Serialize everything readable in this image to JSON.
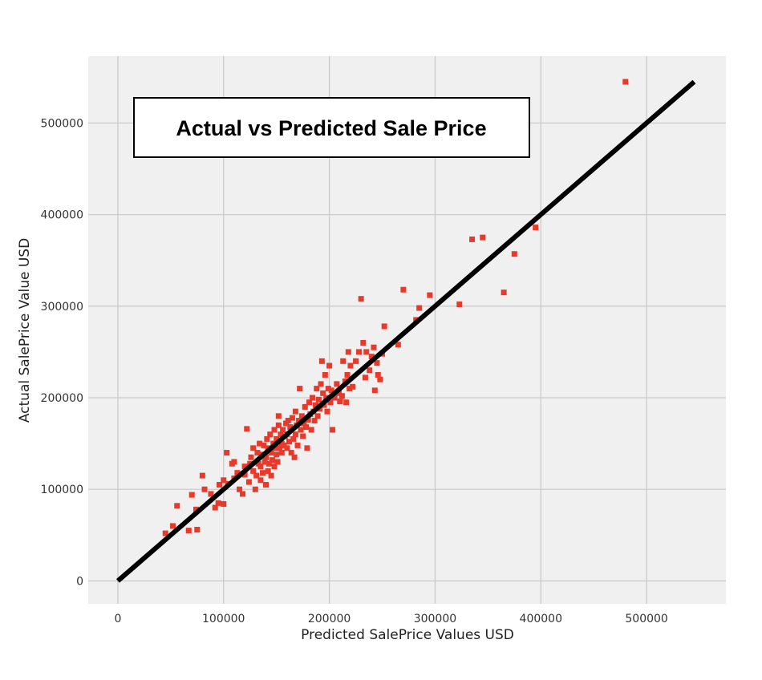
{
  "chart_data": {
    "type": "scatter",
    "title": "Actual vs Predicted Sale Price",
    "xlabel": "Predicted SalePrice Values USD",
    "ylabel": "Actual SalePrice Value USD",
    "xlim": [
      -28000,
      575000
    ],
    "ylim": [
      -25000,
      573000
    ],
    "xticks": [
      0,
      100000,
      200000,
      300000,
      400000,
      500000
    ],
    "yticks": [
      0,
      100000,
      200000,
      300000,
      400000,
      500000
    ],
    "grid": true,
    "reference_line": {
      "x": [
        0,
        545000
      ],
      "y": [
        0,
        545000
      ],
      "color": "#000000"
    },
    "point_color": "#e8392a",
    "background_color": "#f0f0f0",
    "points": [
      [
        45000,
        52000
      ],
      [
        52000,
        60000
      ],
      [
        56000,
        82000
      ],
      [
        67000,
        55000
      ],
      [
        70000,
        94000
      ],
      [
        75000,
        56000
      ],
      [
        74000,
        78000
      ],
      [
        80000,
        115000
      ],
      [
        82000,
        100000
      ],
      [
        88000,
        95000
      ],
      [
        92000,
        80000
      ],
      [
        95000,
        85000
      ],
      [
        96000,
        105000
      ],
      [
        100000,
        84000
      ],
      [
        100000,
        110000
      ],
      [
        103000,
        140000
      ],
      [
        104000,
        106000
      ],
      [
        108000,
        128000
      ],
      [
        110000,
        112000
      ],
      [
        110000,
        130000
      ],
      [
        113000,
        118000
      ],
      [
        115000,
        100000
      ],
      [
        118000,
        95000
      ],
      [
        120000,
        116000
      ],
      [
        120000,
        125000
      ],
      [
        122000,
        166000
      ],
      [
        124000,
        108000
      ],
      [
        125000,
        128000
      ],
      [
        126000,
        135000
      ],
      [
        128000,
        120000
      ],
      [
        128000,
        145000
      ],
      [
        130000,
        100000
      ],
      [
        131000,
        115000
      ],
      [
        132000,
        140000
      ],
      [
        133000,
        128000
      ],
      [
        134000,
        150000
      ],
      [
        135000,
        110000
      ],
      [
        135000,
        125000
      ],
      [
        136000,
        138000
      ],
      [
        137000,
        118000
      ],
      [
        138000,
        148000
      ],
      [
        139000,
        130000
      ],
      [
        140000,
        105000
      ],
      [
        140000,
        135000
      ],
      [
        141000,
        155000
      ],
      [
        142000,
        120000
      ],
      [
        142000,
        145000
      ],
      [
        143000,
        128000
      ],
      [
        144000,
        160000
      ],
      [
        145000,
        115000
      ],
      [
        145000,
        140000
      ],
      [
        146000,
        132000
      ],
      [
        147000,
        150000
      ],
      [
        148000,
        125000
      ],
      [
        148000,
        165000
      ],
      [
        149000,
        145000
      ],
      [
        150000,
        138000
      ],
      [
        150000,
        155000
      ],
      [
        151000,
        130000
      ],
      [
        152000,
        170000
      ],
      [
        152000,
        180000
      ],
      [
        153000,
        145000
      ],
      [
        154000,
        160000
      ],
      [
        155000,
        140000
      ],
      [
        155000,
        150000
      ],
      [
        156000,
        165000
      ],
      [
        157000,
        148000
      ],
      [
        158000,
        158000
      ],
      [
        159000,
        172000
      ],
      [
        160000,
        145000
      ],
      [
        160000,
        160000
      ],
      [
        161000,
        175000
      ],
      [
        162000,
        152000
      ],
      [
        163000,
        168000
      ],
      [
        164000,
        140000
      ],
      [
        165000,
        178000
      ],
      [
        166000,
        155000
      ],
      [
        167000,
        135000
      ],
      [
        168000,
        160000
      ],
      [
        168000,
        185000
      ],
      [
        169000,
        170000
      ],
      [
        170000,
        148000
      ],
      [
        171000,
        175000
      ],
      [
        172000,
        210000
      ],
      [
        173000,
        165000
      ],
      [
        174000,
        180000
      ],
      [
        175000,
        158000
      ],
      [
        176000,
        172000
      ],
      [
        177000,
        190000
      ],
      [
        178000,
        168000
      ],
      [
        179000,
        145000
      ],
      [
        180000,
        176000
      ],
      [
        181000,
        195000
      ],
      [
        182000,
        182000
      ],
      [
        183000,
        165000
      ],
      [
        184000,
        200000
      ],
      [
        185000,
        185000
      ],
      [
        186000,
        175000
      ],
      [
        187000,
        192000
      ],
      [
        188000,
        210000
      ],
      [
        189000,
        180000
      ],
      [
        190000,
        198000
      ],
      [
        191000,
        188000
      ],
      [
        192000,
        215000
      ],
      [
        193000,
        240000
      ],
      [
        194000,
        205000
      ],
      [
        195000,
        192000
      ],
      [
        196000,
        225000
      ],
      [
        197000,
        200000
      ],
      [
        198000,
        185000
      ],
      [
        199000,
        210000
      ],
      [
        200000,
        235000
      ],
      [
        201000,
        195000
      ],
      [
        202000,
        208000
      ],
      [
        203000,
        165000
      ],
      [
        205000,
        200000
      ],
      [
        207000,
        215000
      ],
      [
        209000,
        205000
      ],
      [
        210000,
        196000
      ],
      [
        212000,
        202000
      ],
      [
        213000,
        240000
      ],
      [
        215000,
        218000
      ],
      [
        216000,
        195000
      ],
      [
        217000,
        225000
      ],
      [
        218000,
        250000
      ],
      [
        219000,
        210000
      ],
      [
        220000,
        235000
      ],
      [
        222000,
        212000
      ],
      [
        225000,
        240000
      ],
      [
        228000,
        250000
      ],
      [
        230000,
        308000
      ],
      [
        232000,
        260000
      ],
      [
        234000,
        222000
      ],
      [
        235000,
        250000
      ],
      [
        238000,
        230000
      ],
      [
        240000,
        245000
      ],
      [
        242000,
        255000
      ],
      [
        243000,
        208000
      ],
      [
        245000,
        238000
      ],
      [
        246000,
        225000
      ],
      [
        248000,
        220000
      ],
      [
        250000,
        248000
      ],
      [
        252000,
        278000
      ],
      [
        265000,
        258000
      ],
      [
        270000,
        318000
      ],
      [
        282000,
        285000
      ],
      [
        285000,
        298000
      ],
      [
        295000,
        312000
      ],
      [
        323000,
        302000
      ],
      [
        335000,
        373000
      ],
      [
        345000,
        375000
      ],
      [
        365000,
        315000
      ],
      [
        375000,
        357000
      ],
      [
        395000,
        386000
      ],
      [
        480000,
        545000
      ]
    ]
  }
}
